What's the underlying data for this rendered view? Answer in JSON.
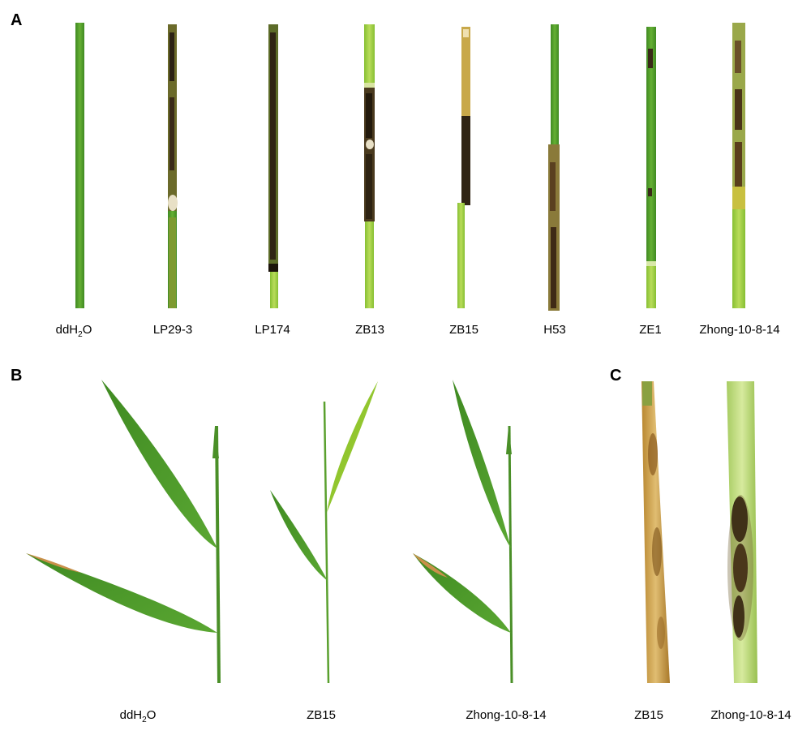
{
  "panels": {
    "a": {
      "letter": "A",
      "labels": [
        "ddH",
        "2",
        "O",
        "LP29-3",
        "LP174",
        "ZB13",
        "ZB15",
        "H53",
        "ZE1",
        "Zhong-10-8-14"
      ]
    },
    "b": {
      "letter": "B",
      "labels": [
        "ddH",
        "2",
        "O",
        "ZB15",
        "Zhong-10-8-14"
      ]
    },
    "c": {
      "letter": "C",
      "labels": [
        "ZB15",
        "Zhong-10-8-14"
      ]
    }
  },
  "colors": {
    "stem_green": "#4f9a2c",
    "stem_light": "#a8d048",
    "lesion_dark": "#3a2a18",
    "lesion_tan": "#c9a146",
    "leaf_green": "#4a8f28",
    "leaf_yellowgreen": "#8cc42a",
    "sheath_pale": "#c8e08a"
  }
}
